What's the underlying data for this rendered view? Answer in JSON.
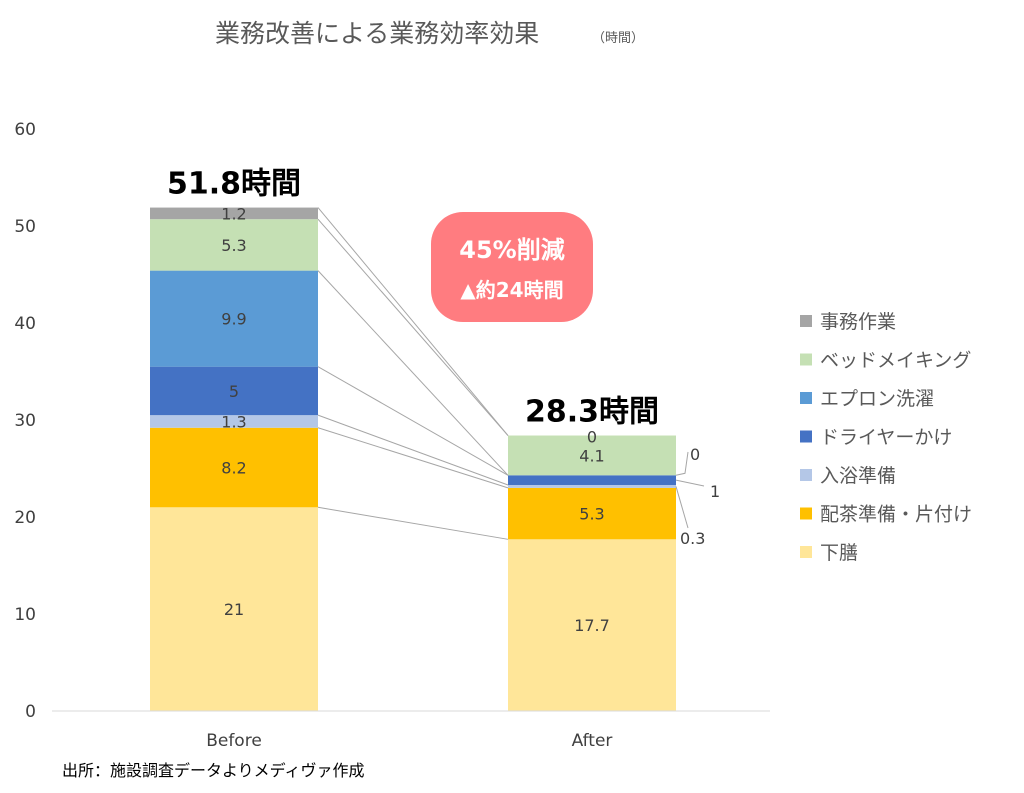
{
  "chart_data": {
    "type": "bar",
    "stacked": true,
    "title": "業務改善による業務効率効果",
    "title_unit": "（時間）",
    "categories": [
      "Before",
      "After"
    ],
    "ylim": [
      0,
      60
    ],
    "yticks": [
      0,
      10,
      20,
      30,
      40,
      50,
      60
    ],
    "grid": false,
    "legend_position": "right",
    "series": [
      {
        "name": "下膳",
        "color": "#FFE699",
        "values": [
          21,
          17.7
        ]
      },
      {
        "name": "配茶準備・片付け",
        "color": "#FFC000",
        "values": [
          8.2,
          5.3
        ]
      },
      {
        "name": "入浴準備",
        "color": "#B4C7E7",
        "values": [
          1.3,
          0.3
        ]
      },
      {
        "name": "ドライヤーかけ",
        "color": "#4472C4",
        "values": [
          5,
          1
        ]
      },
      {
        "name": "エプロン洗濯",
        "color": "#5B9BD5",
        "values": [
          9.9,
          0
        ]
      },
      {
        "name": "ベッドメイキング",
        "color": "#C5E0B4",
        "values": [
          5.3,
          4.1
        ]
      },
      {
        "name": "事務作業",
        "color": "#A5A5A5",
        "values": [
          1.2,
          0
        ]
      }
    ],
    "totals": [
      "51.8時間",
      "28.3時間"
    ]
  },
  "callout": {
    "line1": "45%削減",
    "line2": "▲約24時間",
    "color": "#FF7C80"
  },
  "source": "出所：施設調査データよりメディヴァ作成"
}
